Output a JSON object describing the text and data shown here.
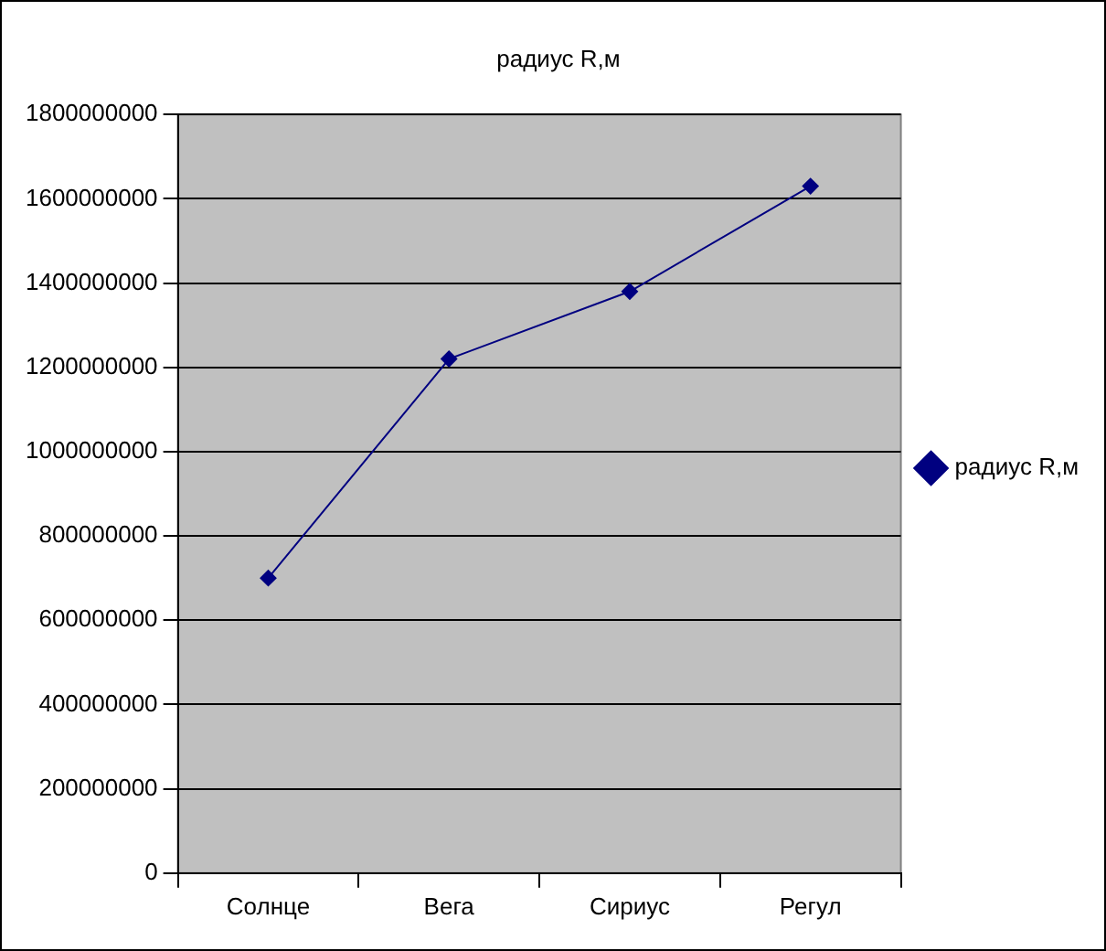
{
  "chart_data": {
    "type": "line",
    "title": "радиус R,м",
    "categories": [
      "Солнце",
      "Вега",
      "Сириус",
      "Регул"
    ],
    "series": [
      {
        "name": "радиус R,м",
        "color": "#000080",
        "values": [
          700000000,
          1220000000,
          1380000000,
          1630000000
        ]
      }
    ],
    "ylim": [
      0,
      1800000000
    ],
    "yticks": [
      0,
      200000000,
      400000000,
      600000000,
      800000000,
      1000000000,
      1200000000,
      1400000000,
      1600000000,
      1800000000
    ],
    "grid": "y",
    "legend": "right",
    "marker": "diamond",
    "line_style": "solid"
  }
}
